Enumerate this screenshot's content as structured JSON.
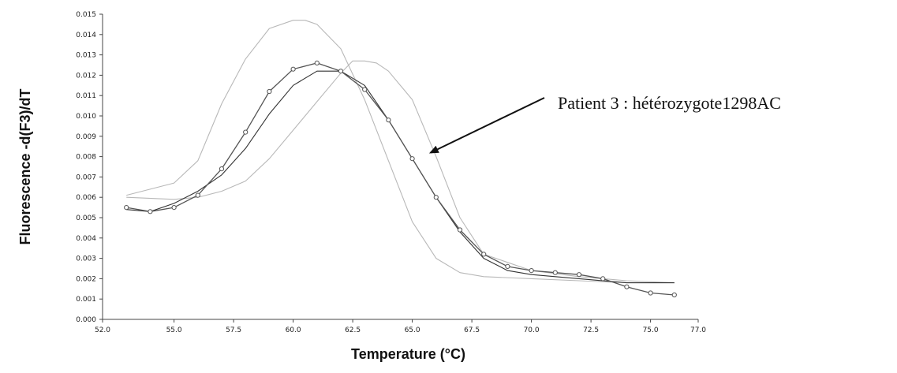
{
  "chart_data": {
    "type": "line",
    "title": "",
    "xlabel": "Temperature (°C)",
    "ylabel": "Fluorescence -d(F3)/dT",
    "xlim": [
      52.0,
      77.0
    ],
    "ylim": [
      0.0,
      0.015
    ],
    "x_ticks": [
      "52.0",
      "55.0",
      "57.5",
      "60.0",
      "62.5",
      "65.0",
      "67.5",
      "70.0",
      "72.5",
      "75.0",
      "77.0"
    ],
    "y_ticks": [
      "0.000",
      "0.001",
      "0.002",
      "0.003",
      "0.004",
      "0.005",
      "0.006",
      "0.007",
      "0.008",
      "0.009",
      "0.010",
      "0.011",
      "0.012",
      "0.013",
      "0.014",
      "0.015"
    ],
    "grid": false,
    "series": [
      {
        "color": "#b8b8b8",
        "x": [
          53.0,
          54.0,
          55.0,
          56.0,
          57.0,
          58.0,
          59.0,
          60.0,
          60.5,
          61.0,
          62.0,
          63.0,
          64.0,
          65.0,
          66.0,
          67.0,
          68.0,
          70.0,
          72.0,
          74.0,
          76.0
        ],
        "y": [
          0.0061,
          0.0064,
          0.0067,
          0.0078,
          0.0106,
          0.0128,
          0.0143,
          0.0147,
          0.0147,
          0.0145,
          0.0133,
          0.0108,
          0.0078,
          0.0048,
          0.003,
          0.0023,
          0.0021,
          0.002,
          0.0019,
          0.0018,
          0.0018
        ]
      },
      {
        "color": "#b8b8b8",
        "x": [
          53.0,
          55.0,
          56.0,
          57.0,
          58.0,
          59.0,
          60.0,
          61.0,
          62.0,
          62.5,
          63.0,
          63.5,
          64.0,
          65.0,
          66.0,
          67.0,
          68.0,
          70.0,
          72.0,
          74.0,
          76.0
        ],
        "y": [
          0.006,
          0.0059,
          0.006,
          0.0063,
          0.0068,
          0.0079,
          0.0093,
          0.0107,
          0.0121,
          0.0127,
          0.0127,
          0.0126,
          0.0122,
          0.0108,
          0.008,
          0.005,
          0.0032,
          0.0024,
          0.0021,
          0.0019,
          0.0018
        ]
      },
      {
        "color": "#333333",
        "x": [
          53.0,
          54.0,
          55.0,
          56.0,
          57.0,
          58.0,
          59.0,
          60.0,
          61.0,
          62.0,
          63.0,
          64.0,
          65.0,
          66.0,
          67.0,
          68.0,
          69.0,
          70.0,
          72.0,
          74.0,
          76.0
        ],
        "y": [
          0.0054,
          0.0053,
          0.0057,
          0.0063,
          0.0071,
          0.0084,
          0.0101,
          0.0115,
          0.0122,
          0.0122,
          0.0115,
          0.0098,
          0.0079,
          0.006,
          0.0043,
          0.003,
          0.0024,
          0.0022,
          0.002,
          0.0018,
          0.0018
        ]
      },
      {
        "color": "#555555",
        "marker": "circle",
        "x": [
          53.0,
          54.0,
          55.0,
          56.0,
          57.0,
          58.0,
          59.0,
          60.0,
          61.0,
          62.0,
          63.0,
          64.0,
          65.0,
          66.0,
          67.0,
          68.0,
          69.0,
          70.0,
          71.0,
          72.0,
          73.0,
          74.0,
          75.0,
          76.0
        ],
        "y": [
          0.0055,
          0.0053,
          0.0055,
          0.0061,
          0.0074,
          0.0092,
          0.0112,
          0.0123,
          0.0126,
          0.0122,
          0.0113,
          0.0098,
          0.0079,
          0.006,
          0.0044,
          0.0032,
          0.0026,
          0.0024,
          0.0023,
          0.0022,
          0.002,
          0.0016,
          0.0013,
          0.0012
        ]
      }
    ],
    "annotations": [
      {
        "text": "Patient 3 : hétérozygote1298AC",
        "arrow_target": [
          65.5,
          0.008
        ]
      }
    ]
  }
}
